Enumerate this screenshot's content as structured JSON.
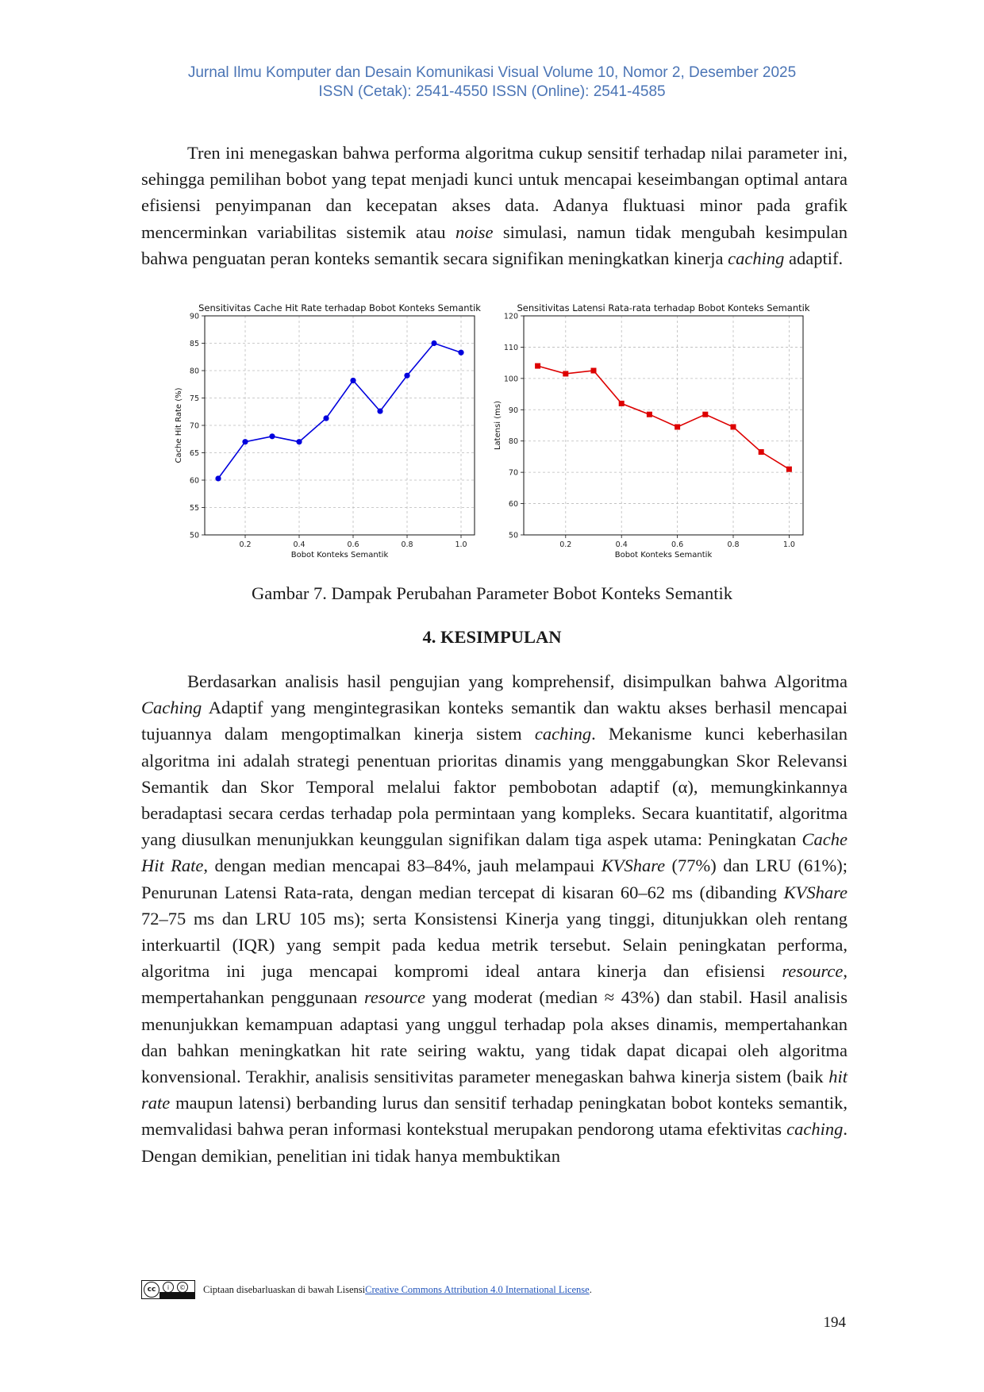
{
  "header": {
    "line1": "Jurnal Ilmu Komputer dan Desain Komunikasi Visual Volume 10, Nomor 2, Desember 2025",
    "line2": "ISSN (Cetak): 2541-4550 ISSN (Online): 2541-4585"
  },
  "para1": {
    "s1": "Tren ini menegaskan bahwa performa algoritma cukup sensitif terhadap nilai parameter ini, sehingga pemilihan bobot yang tepat menjadi kunci untuk mencapai keseimbangan optimal antara efisiensi penyimpanan dan kecepatan akses data. Adanya fluktuasi minor pada grafik mencerminkan variabilitas sistemik atau ",
    "i1": "noise",
    "s2": " simulasi, namun tidak mengubah kesimpulan bahwa penguatan peran konteks semantik secara signifikan meningkatkan kinerja ",
    "i2": "caching",
    "s3": " adaptif."
  },
  "chart_data": [
    {
      "type": "line",
      "title": "Sensitivitas Cache Hit Rate terhadap Bobot Konteks Semantik",
      "xlabel": "Bobot Konteks Semantik",
      "ylabel": "Cache Hit Rate (%)",
      "x": [
        0.1,
        0.2,
        0.3,
        0.4,
        0.5,
        0.6,
        0.7,
        0.8,
        0.9,
        1.0
      ],
      "values": [
        60.3,
        67.0,
        68.0,
        67.0,
        71.3,
        78.2,
        72.6,
        79.1,
        85.0,
        83.3
      ],
      "xlim": [
        0.05,
        1.05
      ],
      "ylim": [
        50,
        90
      ],
      "xticks": [
        "0.2",
        "0.4",
        "0.6",
        "0.8",
        "1.0"
      ],
      "yticks": [
        "50",
        "55",
        "60",
        "65",
        "70",
        "75",
        "80",
        "85",
        "90"
      ],
      "grid": true,
      "color": "#0000dd",
      "marker": "circle"
    },
    {
      "type": "line",
      "title": "Sensitivitas Latensi Rata-rata terhadap Bobot Konteks Semantik",
      "xlabel": "Bobot Konteks Semantik",
      "ylabel": "Latensi (ms)",
      "x": [
        0.1,
        0.2,
        0.3,
        0.4,
        0.5,
        0.6,
        0.7,
        0.8,
        0.9,
        1.0
      ],
      "values": [
        104,
        101.5,
        102.5,
        92,
        88.5,
        84.5,
        88.5,
        84.5,
        76.5,
        71
      ],
      "xlim": [
        0.05,
        1.05
      ],
      "ylim": [
        50,
        120
      ],
      "xticks": [
        "0.2",
        "0.4",
        "0.6",
        "0.8",
        "1.0"
      ],
      "yticks": [
        "50",
        "60",
        "70",
        "80",
        "90",
        "100",
        "110",
        "120"
      ],
      "grid": true,
      "color": "#dd0000",
      "marker": "square"
    }
  ],
  "caption": "Gambar 7. Dampak Perubahan Parameter Bobot Konteks Semantik",
  "section_title": "4. KESIMPULAN",
  "para2": {
    "s1": "Berdasarkan analisis hasil pengujian yang komprehensif, disimpulkan bahwa Algoritma ",
    "i1": "Caching",
    "s2": " Adaptif yang mengintegrasikan konteks semantik dan waktu akses berhasil mencapai tujuannya dalam mengoptimalkan kinerja sistem ",
    "i2": "caching",
    "s3": ". Mekanisme kunci keberhasilan algoritma ini adalah strategi penentuan prioritas dinamis yang menggabungkan Skor Relevansi Semantik dan Skor Temporal melalui faktor pembobotan adaptif (α), memungkinkannya beradaptasi secara cerdas terhadap pola permintaan yang kompleks. Secara kuantitatif, algoritma yang diusulkan menunjukkan keunggulan signifikan dalam tiga aspek utama: Peningkatan ",
    "i3": "Cache Hit Rate",
    "s4": ", dengan median mencapai 83–84%, jauh melampaui ",
    "i4": "KVShare",
    "s5": " (77%) dan LRU (61%); Penurunan Latensi Rata-rata, dengan median tercepat di kisaran 60–62 ms (dibanding ",
    "i5": "KVShare",
    "s6": " 72–75 ms dan LRU 105 ms); serta Konsistensi Kinerja yang tinggi, ditunjukkan oleh rentang interkuartil (IQR) yang sempit pada kedua metrik tersebut. Selain peningkatan performa, algoritma ini juga mencapai kompromi ideal antara kinerja dan efisiensi ",
    "i6": "resource",
    "s7": ", mempertahankan penggunaan ",
    "i7": "resource",
    "s8": " yang moderat (median ≈ 43%) dan stabil. Hasil analisis menunjukkan kemampuan adaptasi yang unggul terhadap pola akses dinamis, mempertahankan dan bahkan meningkatkan hit rate seiring waktu, yang tidak dapat dicapai oleh algoritma konvensional. Terakhir, analisis sensitivitas parameter menegaskan bahwa kinerja sistem (baik ",
    "i8": "hit rate",
    "s9": " maupun latensi) berbanding lurus dan sensitif terhadap peningkatan bobot konteks semantik, memvalidasi bahwa peran informasi kontekstual merupakan pendorong utama efektivitas ",
    "i9": "caching",
    "s10": ". Dengan demikian, penelitian ini tidak hanya membuktikan"
  },
  "footer": {
    "cc_badge": "cc",
    "text": "Ciptaan disebarluaskan di bawah Lisensi ",
    "link": "Creative Commons Attribution 4.0 International License",
    "end": "."
  },
  "page_number": "194"
}
